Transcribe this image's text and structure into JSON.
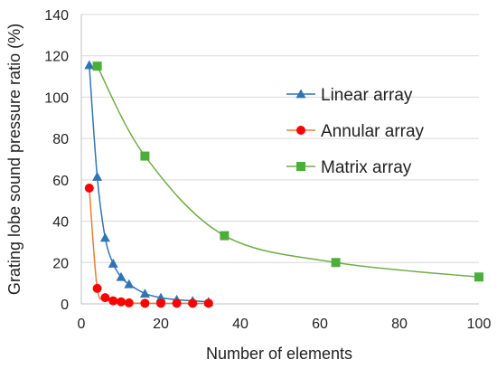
{
  "chart_data": {
    "type": "line",
    "title": "",
    "xlabel": "Number of elements",
    "ylabel": "Grating lobe sound pressure ratio (%)",
    "xlim": [
      0,
      100
    ],
    "ylim": [
      0,
      140
    ],
    "x_ticks": [
      0,
      20,
      40,
      60,
      80,
      100
    ],
    "y_ticks": [
      0,
      20,
      40,
      60,
      80,
      100,
      120,
      140
    ],
    "grid": "horizontal",
    "legend": "right-middle",
    "series": [
      {
        "name": "Linear array",
        "color": "#2f75b5",
        "marker": "triangle",
        "x": [
          2,
          4,
          6,
          8,
          10,
          12,
          16,
          20,
          24,
          28,
          32
        ],
        "y": [
          115.5,
          61.5,
          32,
          19.5,
          13,
          9.5,
          5,
          3,
          2,
          1.5,
          1
        ]
      },
      {
        "name": "Annular array",
        "color": "#ff0000",
        "line_color": "#ed7d31",
        "marker": "circle",
        "x": [
          2,
          4,
          6,
          8,
          10,
          12,
          16,
          20,
          24,
          28,
          32
        ],
        "y": [
          56,
          7.5,
          3,
          1.5,
          1,
          0.5,
          0.3,
          0.3,
          0.3,
          0.3,
          0.3
        ]
      },
      {
        "name": "Matrix array",
        "color": "#4cae3a",
        "line_color": "#70ad47",
        "marker": "square",
        "x": [
          4,
          16,
          36,
          64,
          100
        ],
        "y": [
          115,
          71.5,
          33,
          20,
          13
        ]
      }
    ]
  }
}
